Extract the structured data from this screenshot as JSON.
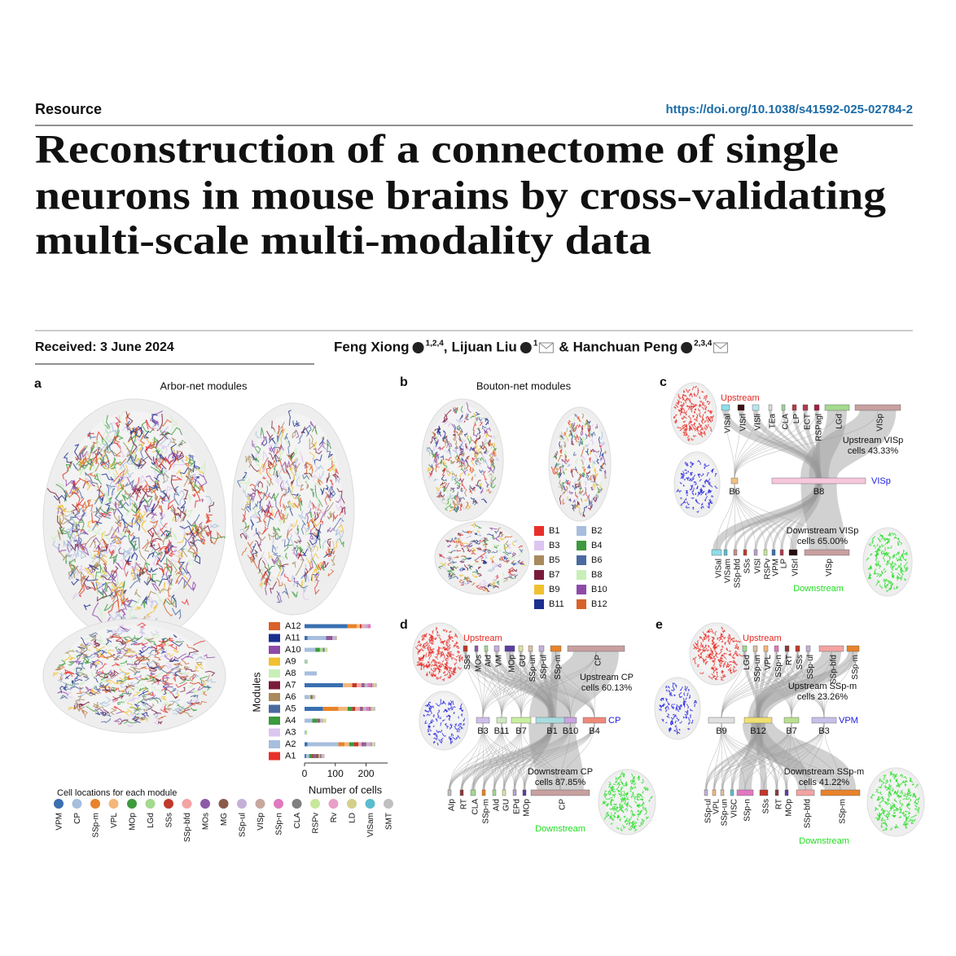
{
  "header": {
    "section": "Resource",
    "doi": "https://doi.org/10.1038/s41592-025-02784-2"
  },
  "title_lines": [
    "Reconstruction of a connectome of single",
    "neurons in mouse brains by cross-validating",
    "multi-scale multi-modality data"
  ],
  "received": "Received: 3 June 2024",
  "authors": [
    {
      "name": "Feng Xiong",
      "affiliations": "1,2,4",
      "separator": ","
    },
    {
      "name": "Lijuan Liu",
      "affiliations": "1",
      "separator": "&"
    },
    {
      "name": "Hanchuan Peng",
      "affiliations": "2,3,4"
    }
  ],
  "panels": {
    "a": {
      "label": "a",
      "title": "Arbor-net modules"
    },
    "b": {
      "label": "b",
      "title": "Bouton-net modules",
      "legend": [
        {
          "name": "B1",
          "color": "#e8302a"
        },
        {
          "name": "B2",
          "color": "#a7bedd"
        },
        {
          "name": "B3",
          "color": "#dcc6f0"
        },
        {
          "name": "B4",
          "color": "#3d9a3d"
        },
        {
          "name": "B5",
          "color": "#a88a5e"
        },
        {
          "name": "B6",
          "color": "#4a6aa0"
        },
        {
          "name": "B7",
          "color": "#7a1a3a"
        },
        {
          "name": "B8",
          "color": "#c8efb8"
        },
        {
          "name": "B9",
          "color": "#f0c030"
        },
        {
          "name": "B10",
          "color": "#8e4aa8"
        },
        {
          "name": "B11",
          "color": "#1c2f8f"
        },
        {
          "name": "B12",
          "color": "#d8622a"
        }
      ]
    },
    "c": {
      "label": "c",
      "upstream_title": "Upstream",
      "downstream_title": "Downstream",
      "target": "VISp",
      "upstream_note": [
        "Upstream VISp",
        "cells 43.33%"
      ],
      "downstream_note": [
        "Downstream VISp",
        "cells 65.00%"
      ],
      "upstream": [
        {
          "name": "VISal",
          "color": "#8fdcea"
        },
        {
          "name": "VISrl",
          "color": "#3a1010"
        },
        {
          "name": "VISli",
          "color": "#b8e6f0"
        },
        {
          "name": "TEa",
          "color": "#d9d9d9"
        },
        {
          "name": "CLA",
          "color": "#9fd19f"
        },
        {
          "name": "LP",
          "color": "#b03a4a"
        },
        {
          "name": "ECT",
          "color": "#b03a4a"
        },
        {
          "name": "RSPagl",
          "color": "#a02040"
        },
        {
          "name": "LGd",
          "color": "#a4d98f"
        },
        {
          "name": "VISp",
          "color": "#c8a0a0"
        }
      ],
      "modules": [
        {
          "name": "B6",
          "color": "#f0c080"
        },
        {
          "name": "B8",
          "color": "#f7c7dc"
        }
      ],
      "downstream": [
        {
          "name": "VISal",
          "color": "#8fdcea"
        },
        {
          "name": "VISam",
          "color": "#5bbccf"
        },
        {
          "name": "SSp-bfd",
          "color": "#c09090"
        },
        {
          "name": "SSs",
          "color": "#c0392b"
        },
        {
          "name": "VISl",
          "color": "#b8a0d0"
        },
        {
          "name": "RSPv",
          "color": "#c7e79a"
        },
        {
          "name": "VPM",
          "color": "#3a6fb0"
        },
        {
          "name": "LP",
          "color": "#b03a4a"
        },
        {
          "name": "VISrl",
          "color": "#2a0a0a"
        },
        {
          "name": "VISp",
          "color": "#c8a0a0"
        }
      ]
    },
    "d": {
      "label": "d",
      "upstream_title": "Upstream",
      "downstream_title": "Downstream",
      "target": "CP",
      "upstream_note": [
        "Upstream CP",
        "cells 60.13%"
      ],
      "downstream_note": [
        "Downstream CP",
        "cells 87.85%"
      ],
      "upstream": [
        {
          "name": "SSs",
          "color": "#c0392b"
        },
        {
          "name": "MOs",
          "color": "#8e5aa8"
        },
        {
          "name": "AId",
          "color": "#a4d98f"
        },
        {
          "name": "VM",
          "color": "#c4b0d8"
        },
        {
          "name": "MOp",
          "color": "#5b3ea0"
        },
        {
          "name": "GU",
          "color": "#e0e0a0"
        },
        {
          "name": "SSp-un",
          "color": "#d9c0a0"
        },
        {
          "name": "SSp-ul",
          "color": "#c4b0d8"
        },
        {
          "name": "SSp-m",
          "color": "#e8832a"
        },
        {
          "name": "CP",
          "color": "#c8a0a0"
        }
      ],
      "modules": [
        {
          "name": "B3",
          "color": "#cfc0ea"
        },
        {
          "name": "B11",
          "color": "#cfe8c0"
        },
        {
          "name": "B7",
          "color": "#c8ef9f"
        },
        {
          "name": "B1",
          "color": "#a8dde0"
        },
        {
          "name": "B10",
          "color": "#c9a5e0"
        },
        {
          "name": "B4",
          "color": "#f08a7a"
        }
      ],
      "downstream": [
        {
          "name": "AIp",
          "color": "#c0c0c0"
        },
        {
          "name": "RT",
          "color": "#8a3a3a"
        },
        {
          "name": "CLA",
          "color": "#a4d98f"
        },
        {
          "name": "SSp-m",
          "color": "#e8832a"
        },
        {
          "name": "AId",
          "color": "#a4d98f"
        },
        {
          "name": "GU",
          "color": "#e0e0a0"
        },
        {
          "name": "EPd",
          "color": "#c0a0c0"
        },
        {
          "name": "MOp",
          "color": "#5b3ea0"
        },
        {
          "name": "CP",
          "color": "#c8a0a0"
        }
      ]
    },
    "e": {
      "label": "e",
      "upstream_title": "Upstream",
      "downstream_title": "Downstream",
      "target": "VPM",
      "upstream_note": [
        "Upstream SSp-m",
        "cells 23.26%"
      ],
      "downstream_note": [
        "Downstream SSp-m",
        "cells 41.22%"
      ],
      "upstream": [
        {
          "name": "LGd",
          "color": "#a4d98f"
        },
        {
          "name": "SSp-un",
          "color": "#d9c0a0"
        },
        {
          "name": "VPL",
          "color": "#f4b67a"
        },
        {
          "name": "SSp-n",
          "color": "#e078c0"
        },
        {
          "name": "RT",
          "color": "#8a3a3a"
        },
        {
          "name": "SSs",
          "color": "#c0392b"
        },
        {
          "name": "SSp-ul",
          "color": "#c4b0d8"
        },
        {
          "name": "SSp-bfd",
          "color": "#f4a3a3"
        },
        {
          "name": "SSp-m",
          "color": "#e8832a"
        }
      ],
      "modules": [
        {
          "name": "B9",
          "color": "#e0e0e0"
        },
        {
          "name": "B12",
          "color": "#f0e070"
        },
        {
          "name": "B7",
          "color": "#b8e08f"
        },
        {
          "name": "B3",
          "color": "#c8c0e8"
        }
      ],
      "downstream": [
        {
          "name": "SSp-ul",
          "color": "#c4b0d8"
        },
        {
          "name": "VPL",
          "color": "#f4b67a"
        },
        {
          "name": "SSp-un",
          "color": "#d9c0a0"
        },
        {
          "name": "VISC",
          "color": "#5bbccf"
        },
        {
          "name": "SSp-n",
          "color": "#e078c0"
        },
        {
          "name": "SSs",
          "color": "#c0392b"
        },
        {
          "name": "RT",
          "color": "#8a3a3a"
        },
        {
          "name": "MOp",
          "color": "#5b3ea0"
        },
        {
          "name": "SSp-bfd",
          "color": "#f4a3a3"
        },
        {
          "name": "SSp-m",
          "color": "#e8832a"
        }
      ]
    }
  },
  "chart_data": {
    "type": "bar",
    "orientation": "horizontal",
    "stacked": true,
    "xlabel": "Number of cells",
    "ylabel": "Modules",
    "legend_title": "Cell locations for each module",
    "categories": [
      "A12",
      "A11",
      "A10",
      "A9",
      "A8",
      "A7",
      "A6",
      "A5",
      "A4",
      "A3",
      "A2",
      "A1"
    ],
    "category_colors": [
      "#d8622a",
      "#1c2f8f",
      "#8e4aa8",
      "#f0c030",
      "#c8efb8",
      "#7a1a3a",
      "#a88a5e",
      "#4a6aa0",
      "#3d9a3d",
      "#dcc6f0",
      "#a7bedd",
      "#e8302a"
    ],
    "xlim": [
      0,
      270
    ],
    "xticks": [
      0,
      100,
      200
    ],
    "series": [
      {
        "name": "VPM",
        "color": "#3a6fb0",
        "values": [
          140,
          10,
          0,
          0,
          0,
          125,
          0,
          60,
          0,
          0,
          10,
          5
        ]
      },
      {
        "name": "CP",
        "color": "#a7bedd",
        "values": [
          0,
          60,
          35,
          5,
          40,
          0,
          15,
          0,
          25,
          3,
          100,
          10
        ]
      },
      {
        "name": "SSp-m",
        "color": "#e8832a",
        "values": [
          30,
          0,
          0,
          0,
          0,
          0,
          0,
          50,
          0,
          0,
          20,
          0
        ]
      },
      {
        "name": "VPL",
        "color": "#f4b67a",
        "values": [
          10,
          0,
          0,
          0,
          0,
          30,
          0,
          30,
          0,
          0,
          15,
          0
        ]
      },
      {
        "name": "MOp",
        "color": "#3d9a3d",
        "values": [
          0,
          0,
          15,
          0,
          0,
          0,
          0,
          15,
          15,
          0,
          15,
          10
        ]
      },
      {
        "name": "LGd",
        "color": "#a4d98f",
        "values": [
          0,
          0,
          10,
          5,
          0,
          0,
          5,
          0,
          0,
          5,
          0,
          0
        ]
      },
      {
        "name": "SSs",
        "color": "#c0392b",
        "values": [
          5,
          0,
          0,
          0,
          0,
          15,
          0,
          10,
          0,
          0,
          15,
          5
        ]
      },
      {
        "name": "SSp-bfd",
        "color": "#f4a3a3",
        "values": [
          10,
          0,
          0,
          0,
          0,
          15,
          0,
          15,
          0,
          0,
          10,
          0
        ]
      },
      {
        "name": "MOs",
        "color": "#8e5aa8",
        "values": [
          0,
          15,
          5,
          0,
          0,
          5,
          0,
          5,
          5,
          0,
          10,
          5
        ]
      },
      {
        "name": "MG",
        "color": "#8c5a4a",
        "values": [
          0,
          5,
          0,
          0,
          0,
          5,
          5,
          5,
          5,
          0,
          5,
          10
        ]
      },
      {
        "name": "SSp-ul",
        "color": "#c4b0d8",
        "values": [
          10,
          10,
          0,
          0,
          0,
          10,
          0,
          10,
          5,
          0,
          10,
          0
        ]
      },
      {
        "name": "VISp",
        "color": "#c8a89e",
        "values": [
          0,
          5,
          0,
          0,
          0,
          0,
          5,
          0,
          5,
          0,
          5,
          5
        ]
      },
      {
        "name": "SSp-n",
        "color": "#e078c0",
        "values": [
          10,
          0,
          0,
          0,
          0,
          10,
          0,
          10,
          0,
          0,
          5,
          0
        ]
      },
      {
        "name": "CLA",
        "color": "#7f7f7f",
        "values": [
          0,
          0,
          0,
          0,
          0,
          5,
          0,
          5,
          0,
          0,
          0,
          5
        ]
      },
      {
        "name": "RSPv",
        "color": "#c7e79a",
        "values": [
          0,
          0,
          10,
          0,
          0,
          0,
          0,
          0,
          5,
          0,
          5,
          0
        ]
      },
      {
        "name": "Rv",
        "color": "#e8a0c8",
        "values": [
          0,
          0,
          0,
          0,
          0,
          5,
          0,
          5,
          0,
          0,
          0,
          5
        ]
      },
      {
        "name": "LD",
        "color": "#d4cf8a",
        "values": [
          0,
          0,
          0,
          0,
          0,
          5,
          0,
          5,
          5,
          0,
          0,
          0
        ]
      },
      {
        "name": "VISam",
        "color": "#5bbccf",
        "values": [
          0,
          0,
          0,
          0,
          0,
          0,
          0,
          0,
          0,
          0,
          0,
          0
        ]
      },
      {
        "name": "SMT",
        "color": "#c0c0c0",
        "values": [
          0,
          0,
          0,
          0,
          0,
          5,
          5,
          5,
          0,
          0,
          5,
          5
        ]
      }
    ]
  }
}
